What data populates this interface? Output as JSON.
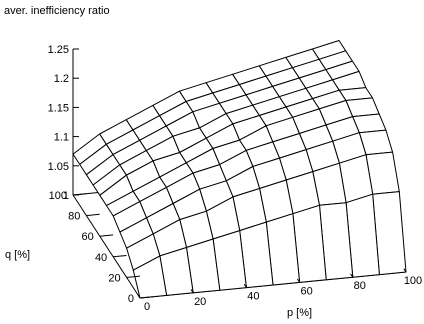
{
  "chart_data": {
    "type": "surface",
    "title": "aver. inefficiency ratio",
    "xlabel": "p [%]",
    "ylabel": "q [%]",
    "zlabel": "",
    "xlim": [
      0,
      100
    ],
    "ylim": [
      0,
      100
    ],
    "zlim": [
      1.0,
      1.25
    ],
    "x_ticks": [
      "0",
      "20",
      "40",
      "60",
      "80",
      "100"
    ],
    "y_ticks": [
      "0",
      "20",
      "40",
      "60",
      "80",
      "100"
    ],
    "z_ticks": [
      "1.25",
      "1.2",
      "1.15",
      "1.1",
      "1.05",
      "1"
    ],
    "grid": false,
    "p_values": [
      0,
      10,
      20,
      30,
      40,
      50,
      60,
      70,
      80,
      90,
      100
    ],
    "q_values": [
      0,
      10,
      20,
      30,
      40,
      50,
      60,
      70,
      80,
      90,
      100
    ],
    "z_values": [
      [
        1.0,
        1.0,
        1.0,
        1.0,
        1.0,
        1.0,
        1.0,
        1.0,
        1.0,
        1.0,
        1.0
      ],
      [
        1.03,
        1.05,
        1.06,
        1.07,
        1.08,
        1.09,
        1.1,
        1.11,
        1.11,
        1.12,
        1.12
      ],
      [
        1.05,
        1.07,
        1.09,
        1.1,
        1.12,
        1.13,
        1.14,
        1.15,
        1.16,
        1.17,
        1.17
      ],
      [
        1.06,
        1.08,
        1.1,
        1.12,
        1.13,
        1.15,
        1.16,
        1.17,
        1.18,
        1.19,
        1.19
      ],
      [
        1.07,
        1.09,
        1.11,
        1.13,
        1.14,
        1.16,
        1.17,
        1.18,
        1.19,
        1.2,
        1.2
      ],
      [
        1.07,
        1.09,
        1.11,
        1.13,
        1.15,
        1.16,
        1.18,
        1.19,
        1.2,
        1.21,
        1.21
      ],
      [
        1.07,
        1.1,
        1.12,
        1.13,
        1.15,
        1.17,
        1.18,
        1.19,
        1.2,
        1.21,
        1.21
      ],
      [
        1.07,
        1.1,
        1.12,
        1.14,
        1.15,
        1.17,
        1.18,
        1.19,
        1.2,
        1.21,
        1.22
      ],
      [
        1.07,
        1.1,
        1.12,
        1.14,
        1.16,
        1.17,
        1.18,
        1.19,
        1.2,
        1.21,
        1.22
      ],
      [
        1.07,
        1.1,
        1.12,
        1.14,
        1.16,
        1.17,
        1.18,
        1.19,
        1.2,
        1.21,
        1.22
      ],
      [
        1.07,
        1.1,
        1.12,
        1.14,
        1.16,
        1.17,
        1.18,
        1.19,
        1.2,
        1.21,
        1.22
      ]
    ]
  }
}
